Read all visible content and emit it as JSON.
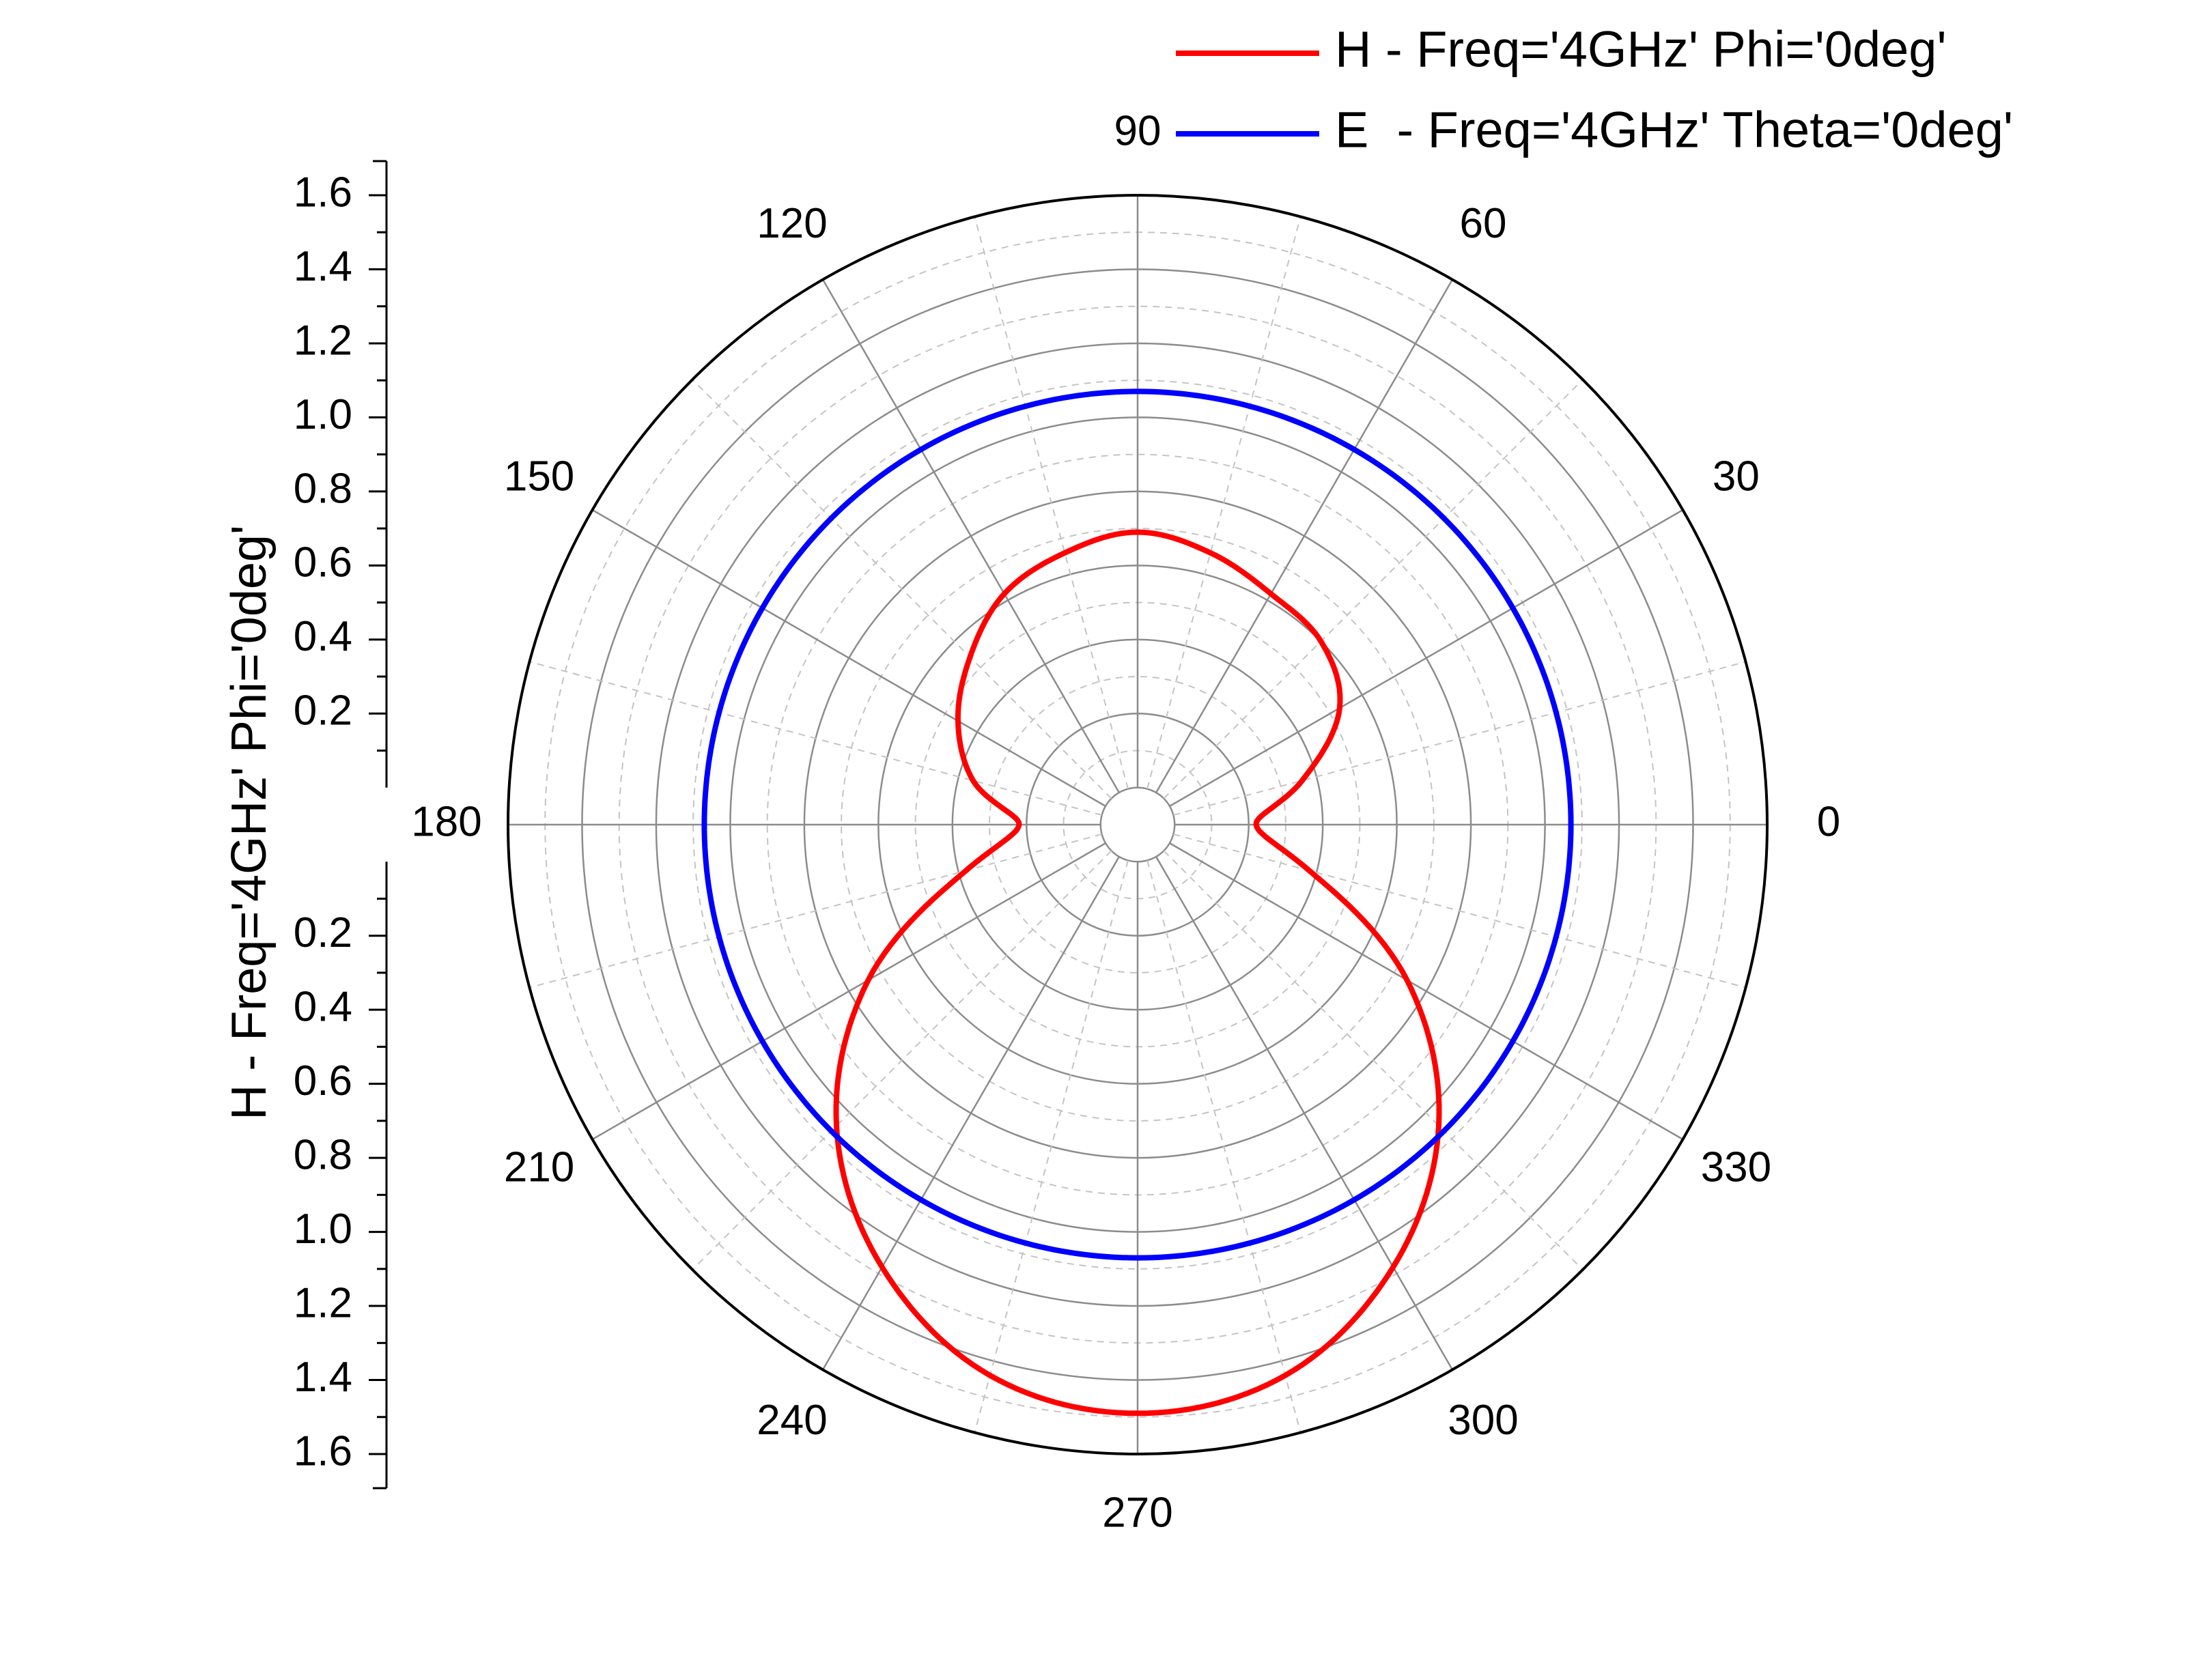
{
  "chart_data": {
    "type": "polar_line",
    "angle_unit": "deg",
    "angular_ticks": [
      0,
      30,
      60,
      90,
      120,
      150,
      180,
      210,
      240,
      270,
      300,
      330
    ],
    "angular_tick_labels": [
      "0",
      "30",
      "60",
      "90",
      "120",
      "150",
      "180",
      "210",
      "240",
      "270",
      "300",
      "330"
    ],
    "radial_range": [
      -0.1,
      1.6
    ],
    "radial_ticks_major": [
      0.0,
      0.2,
      0.4,
      0.6,
      0.8,
      1.0,
      1.2,
      1.4,
      1.6
    ],
    "radial_tick_labels": [
      "0.2",
      "0.4",
      "0.6",
      "0.8",
      "1.0",
      "1.2",
      "1.4",
      "1.6"
    ],
    "radial_tick_values": [
      0.2,
      0.4,
      0.6,
      0.8,
      1.0,
      1.2,
      1.4,
      1.6
    ],
    "radial_axis_title": "H - Freq='4GHz' Phi='0deg'",
    "legend_position": "top-right",
    "series": [
      {
        "name": "H - Freq='4GHz' Phi='0deg'",
        "color": "#ff0000",
        "angles": [
          0,
          15,
          30,
          45,
          60,
          75,
          90,
          105,
          120,
          135,
          150,
          165,
          180,
          195,
          210,
          225,
          240,
          255,
          270,
          285,
          300,
          315,
          330,
          345,
          360
        ],
        "values": [
          0.22,
          0.36,
          0.53,
          0.6,
          0.62,
          0.66,
          0.69,
          0.66,
          0.62,
          0.54,
          0.46,
          0.36,
          0.22,
          0.38,
          0.74,
          1.05,
          1.28,
          1.44,
          1.49,
          1.44,
          1.28,
          1.05,
          0.74,
          0.38,
          0.22
        ]
      },
      {
        "name": "E  - Freq='4GHz' Theta='0deg'",
        "color": "#0000ff",
        "angles": [
          0,
          90,
          180,
          270,
          360
        ],
        "values": [
          1.07,
          1.07,
          1.07,
          1.07,
          1.07
        ]
      }
    ]
  }
}
